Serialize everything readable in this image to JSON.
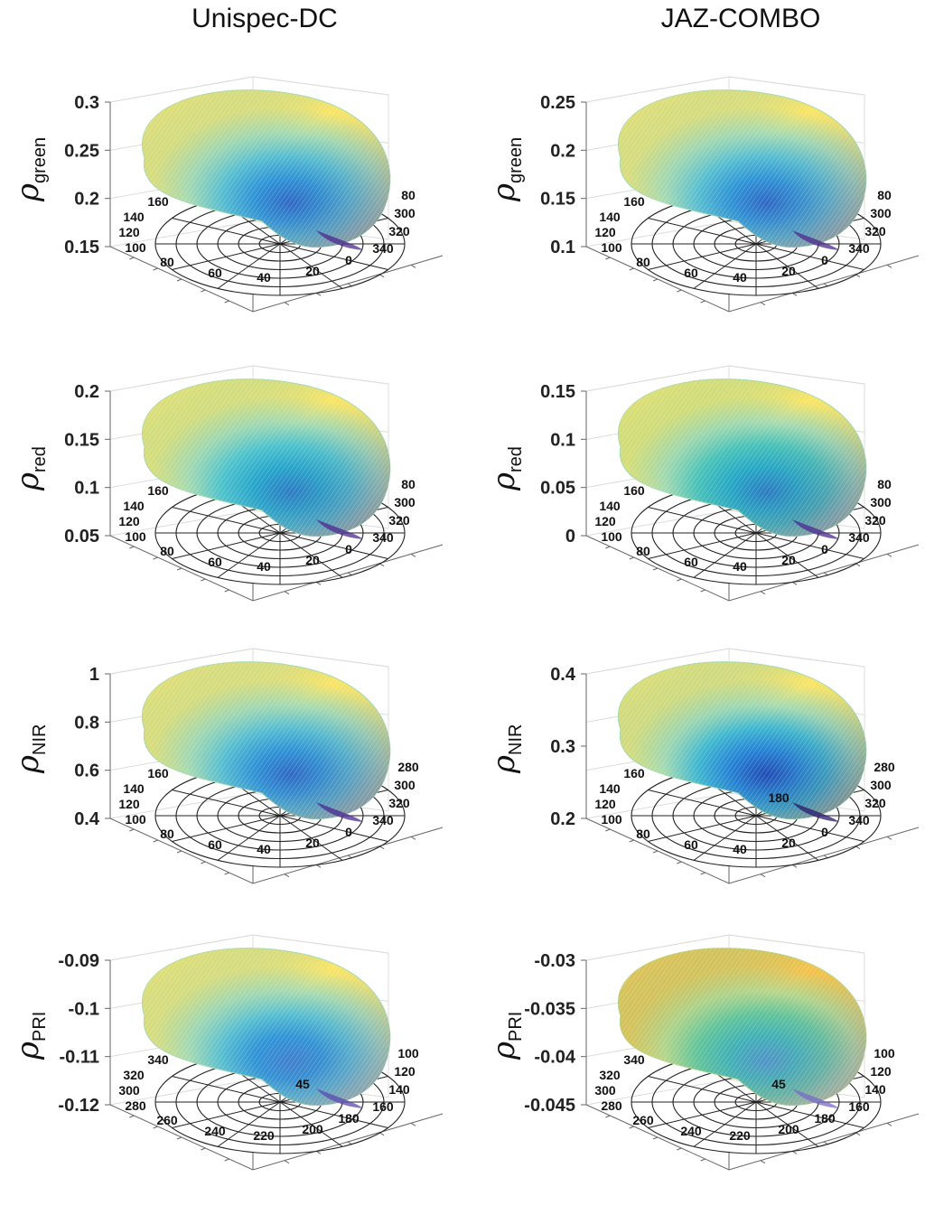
{
  "column_titles": [
    "Unispec-DC",
    "JAZ-COMBO"
  ],
  "chart_data": [
    {
      "type": "surface",
      "title": "Unispec-DC",
      "ylabel_symbol": "ρ",
      "ylabel_sub": "green",
      "zticks": [
        "0.3",
        "0.25",
        "0.2",
        "0.15"
      ],
      "zlim": [
        0.15,
        0.3
      ],
      "polar_ticks": [
        "160",
        "140",
        "120",
        "100",
        "80",
        "60",
        "40",
        "20",
        "0",
        "340",
        "320",
        "300",
        "80"
      ],
      "palette": [
        "#f9e466",
        "#a8dbb0",
        "#58bfd0",
        "#2a92d8",
        "#2660c8",
        "#4b2a90"
      ]
    },
    {
      "type": "surface",
      "title": "JAZ-COMBO",
      "ylabel_symbol": "ρ",
      "ylabel_sub": "green",
      "zticks": [
        "0.25",
        "0.2",
        "0.15",
        "0.1"
      ],
      "zlim": [
        0.1,
        0.25
      ],
      "polar_ticks": [
        "160",
        "140",
        "120",
        "100",
        "80",
        "60",
        "40",
        "20",
        "0",
        "340",
        "320",
        "300",
        "80"
      ],
      "palette": [
        "#f9e466",
        "#a8dbb0",
        "#58bfd0",
        "#2a92d8",
        "#2660c8",
        "#4b2a90"
      ]
    },
    {
      "type": "surface",
      "ylabel_symbol": "ρ",
      "ylabel_sub": "red",
      "zticks": [
        "0.2",
        "0.15",
        "0.1",
        "0.05"
      ],
      "zlim": [
        0.05,
        0.2
      ],
      "polar_ticks": [
        "160",
        "140",
        "120",
        "100",
        "80",
        "60",
        "40",
        "20",
        "0",
        "340",
        "320",
        "300",
        "80"
      ],
      "palette": [
        "#f9e466",
        "#a8dbb0",
        "#4ec3cc",
        "#22a5cc",
        "#2478c8",
        "#4b2a90"
      ]
    },
    {
      "type": "surface",
      "ylabel_symbol": "ρ",
      "ylabel_sub": "red",
      "zticks": [
        "0.15",
        "0.1",
        "0.05",
        "0"
      ],
      "zlim": [
        0,
        0.15
      ],
      "polar_ticks": [
        "160",
        "140",
        "120",
        "100",
        "80",
        "60",
        "40",
        "20",
        "0",
        "340",
        "320",
        "300",
        "80"
      ],
      "palette": [
        "#f9e466",
        "#a8dbb0",
        "#48c2b8",
        "#22a8c8",
        "#2478c8",
        "#4b2a90"
      ]
    },
    {
      "type": "surface",
      "ylabel_symbol": "ρ",
      "ylabel_sub": "NIR",
      "zticks": [
        "1",
        "0.8",
        "0.6",
        "0.4"
      ],
      "zlim": [
        0.4,
        1
      ],
      "polar_ticks": [
        "160",
        "140",
        "120",
        "100",
        "80",
        "60",
        "40",
        "20",
        "0",
        "340",
        "320",
        "300",
        "280"
      ],
      "palette": [
        "#f9e466",
        "#a8dbb0",
        "#58bfd0",
        "#2a92d8",
        "#2660c8",
        "#4b2a90"
      ]
    },
    {
      "type": "surface",
      "ylabel_symbol": "ρ",
      "ylabel_sub": "NIR",
      "zticks": [
        "0.4",
        "0.3",
        "0.2"
      ],
      "zlim": [
        0.2,
        0.4
      ],
      "polar_ticks": [
        "160",
        "140",
        "120",
        "100",
        "80",
        "60",
        "40",
        "20",
        "0",
        "340",
        "320",
        "300",
        "280",
        "180"
      ],
      "palette": [
        "#f9e466",
        "#a8dbb0",
        "#3fb8d0",
        "#2280d8",
        "#1d3fb8",
        "#2a1a6c"
      ]
    },
    {
      "type": "surface",
      "ylabel_symbol": "ρ",
      "ylabel_sub": "PRI",
      "zticks": [
        "-0.09",
        "-0.1",
        "-0.11",
        "-0.12"
      ],
      "zlim": [
        -0.12,
        -0.09
      ],
      "polar_ticks": [
        "340",
        "320",
        "300",
        "280",
        "260",
        "240",
        "220",
        "200",
        "180",
        "160",
        "140",
        "120",
        "100",
        "45"
      ],
      "palette": [
        "#f9e466",
        "#a8dbb0",
        "#58bfd0",
        "#2a92d8",
        "#3a7ad0",
        "#5a4ab0"
      ]
    },
    {
      "type": "surface",
      "ylabel_symbol": "ρ",
      "ylabel_sub": "PRI",
      "zticks": [
        "-0.03",
        "-0.035",
        "-0.04",
        "-0.045"
      ],
      "zlim": [
        -0.045,
        -0.03
      ],
      "polar_ticks": [
        "340",
        "320",
        "300",
        "280",
        "260",
        "240",
        "220",
        "200",
        "180",
        "160",
        "140",
        "120",
        "100",
        "45"
      ],
      "palette": [
        "#f4c24a",
        "#b8d68a",
        "#60c49a",
        "#3cb0b8",
        "#4a90d0",
        "#7a6ac8"
      ]
    }
  ]
}
